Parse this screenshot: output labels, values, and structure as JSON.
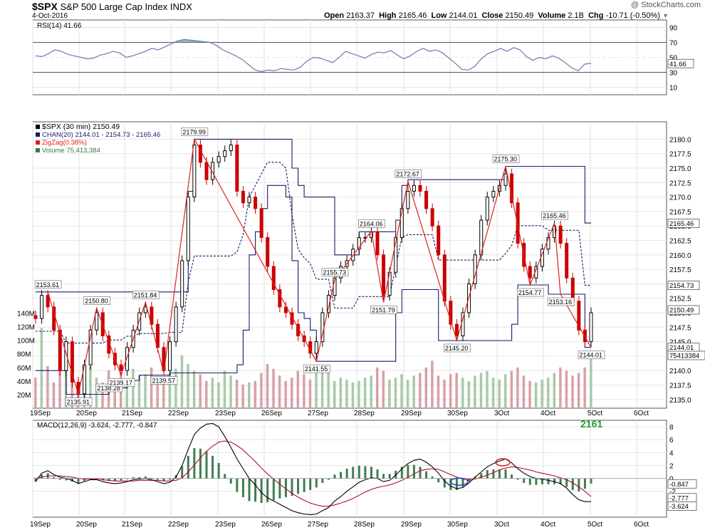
{
  "header": {
    "symbol": "$SPX",
    "name": "S&P 500 Large Cap Index",
    "exchange": "INDX",
    "date": "4-Oct-2016",
    "credit": "@ StockCharts.com",
    "open_label": "Open",
    "open": "2163.37",
    "high_label": "High",
    "high": "2165.46",
    "low_label": "Low",
    "low": "2144.01",
    "close_label": "Close",
    "close": "2150.49",
    "volume_label": "Volume",
    "volume": "2.1B",
    "chg_label": "Chg",
    "chg": "-10.71 (-0.50%)"
  },
  "colors": {
    "up": "#000000",
    "down": "#cc0000",
    "channel": "#1a1a6e",
    "zigzag": "#e02020",
    "rsi": "#6a7bb0",
    "macd": "#000000",
    "signal": "#b01030",
    "hist": "#3f7d52",
    "volume": "#9fbf9f"
  },
  "chart_data": [
    {
      "type": "line",
      "title": "RSI(14) 41.66",
      "y_ticks": [
        10,
        30,
        50,
        70,
        90
      ],
      "last_label": "41.66",
      "ylim": [
        0,
        100
      ],
      "x_labels": [
        "19Sep",
        "20Sep",
        "21Sep",
        "22Sep",
        "23Sep",
        "26Sep",
        "27Sep",
        "28Sep",
        "29Sep",
        "30Sep",
        "3Oct",
        "4Oct",
        "5Oct",
        "6Oct"
      ],
      "series": [
        {
          "values": [
            52,
            51,
            55,
            60,
            58,
            54,
            52,
            50,
            48,
            49,
            53,
            55,
            58,
            56,
            50,
            52,
            55,
            58,
            62,
            60,
            64,
            68,
            72,
            74,
            73,
            72,
            71,
            70,
            66,
            60,
            56,
            52,
            47,
            40,
            33,
            31,
            33,
            32,
            35,
            34,
            33,
            37,
            45,
            50,
            49,
            46,
            43,
            50,
            58,
            55,
            52,
            49,
            54,
            57,
            56,
            59,
            53,
            48,
            52,
            58,
            62,
            58,
            60,
            56,
            49,
            42,
            34,
            33,
            38,
            48,
            55,
            58,
            62,
            58,
            63,
            60,
            51,
            46,
            50,
            48,
            52,
            49,
            43,
            36,
            32,
            41,
            42
          ]
        }
      ]
    },
    {
      "type": "candlestick",
      "legend": [
        "$SPX (30 min) 2150.49",
        "CHAN(20) 2144.01 - 2154.73 - 2165.46",
        "ZigZag(0.38%)",
        "Volume 75,413,384"
      ],
      "ylim": [
        2133.5,
        2183
      ],
      "y_ticks": [
        "2135.0",
        "2137.5",
        "2140.0",
        "2142.5",
        "2145.0",
        "2147.5",
        "2150.0",
        "2152.5",
        "2155.0",
        "2157.5",
        "2160.0",
        "2162.5",
        "2165.0",
        "2167.5",
        "2170.0",
        "2172.5",
        "2175.0",
        "2177.5",
        "2180.0"
      ],
      "badges": [
        "2165.46",
        "2154.73",
        "2150.49",
        "2144.01",
        "75413384"
      ],
      "volume_ticks": [
        "20M",
        "40M",
        "60M",
        "80M",
        "100M",
        "120M",
        "140M"
      ],
      "zigzag_labels": [
        "2153.61",
        "2135.91",
        "2150.80",
        "2138.28",
        "2139.17",
        "2151.84",
        "2139.57",
        "2179.99",
        "2141.55",
        "2155.73",
        "2164.06",
        "2151.79",
        "2172.67",
        "2145.20",
        "2175.30",
        "2154.77",
        "2165.46",
        "2153.16",
        "2144.01"
      ],
      "zigzag_points": [
        [
          2,
          2153.6
        ],
        [
          7,
          2135.9
        ],
        [
          10,
          2150.8
        ],
        [
          14,
          2139.2
        ],
        [
          18,
          2151.8
        ],
        [
          21,
          2139.6
        ],
        [
          26,
          2180.0
        ],
        [
          46,
          2141.6
        ],
        [
          49,
          2155.7
        ],
        [
          55,
          2164.1
        ],
        [
          57,
          2151.8
        ],
        [
          61,
          2172.7
        ],
        [
          69,
          2145.2
        ],
        [
          77,
          2175.3
        ],
        [
          81,
          2154.8
        ],
        [
          85,
          2165.5
        ],
        [
          86,
          2153.2
        ],
        [
          91,
          2144.0
        ]
      ],
      "closes": [
        2149,
        2153,
        2151,
        2147,
        2140,
        2145,
        2138,
        2136,
        2141,
        2147,
        2150,
        2146,
        2143,
        2141,
        2140,
        2144,
        2147,
        2150,
        2151,
        2148,
        2144,
        2140,
        2145,
        2151,
        2159,
        2170,
        2179,
        2176,
        2173,
        2176,
        2177,
        2178,
        2179,
        2171,
        2169,
        2170,
        2168,
        2163,
        2158,
        2154,
        2151,
        2150,
        2148,
        2146,
        2145,
        2143,
        2145,
        2150,
        2153,
        2156,
        2158,
        2159,
        2161,
        2163,
        2163,
        2164,
        2160,
        2153,
        2157,
        2163,
        2168,
        2171,
        2172,
        2171,
        2168,
        2165,
        2160,
        2152,
        2148,
        2146,
        2150,
        2155,
        2160,
        2166,
        2170,
        2171,
        2172,
        2174,
        2169,
        2162,
        2158,
        2156,
        2158,
        2161,
        2163,
        2165,
        2162,
        2156,
        2152,
        2147,
        2145,
        2150
      ],
      "volumes": [
        45,
        118,
        62,
        38,
        55,
        70,
        40,
        35,
        50,
        62,
        45,
        38,
        56,
        44,
        52,
        40,
        58,
        48,
        50,
        60,
        42,
        38,
        52,
        58,
        78,
        65,
        55,
        50,
        40,
        45,
        38,
        55,
        48,
        42,
        35,
        38,
        40,
        52,
        65,
        58,
        48,
        40,
        45,
        55,
        50,
        42,
        62,
        58,
        52,
        40,
        45,
        42,
        38,
        40,
        45,
        48,
        60,
        55,
        42,
        45,
        50,
        42,
        48,
        52,
        60,
        70,
        48,
        42,
        50,
        52,
        45,
        40,
        48,
        52,
        55,
        45,
        42,
        50,
        55,
        60,
        48,
        40,
        38,
        42,
        45,
        52,
        60,
        55,
        48,
        52,
        60,
        82
      ],
      "channel_upper": [
        2153.6,
        2153.6,
        2153.6,
        2153.6,
        2153.6,
        2153.6,
        2153.6,
        2153.6,
        2153.6,
        2153.6,
        2153.6,
        2153.6,
        2153.6,
        2153.6,
        2153.6,
        2153.6,
        2153.6,
        2153.6,
        2153.6,
        2153.6,
        2153.6,
        2153.6,
        2153.6,
        2153.6,
        2153.6,
        2171,
        2180,
        2180,
        2180,
        2180,
        2180,
        2180,
        2180,
        2180,
        2180,
        2180,
        2180,
        2180,
        2180,
        2180,
        2180,
        2180,
        2175,
        2172,
        2170,
        2170,
        2170,
        2170,
        2170,
        2160,
        2160,
        2160,
        2160,
        2164,
        2164,
        2164,
        2164,
        2164,
        2164,
        2166,
        2172,
        2173,
        2173,
        2173,
        2173,
        2173,
        2173,
        2173,
        2173,
        2173,
        2173,
        2173,
        2173,
        2173,
        2173,
        2173,
        2173,
        2175.3,
        2175.3,
        2175.3,
        2175.3,
        2175.3,
        2175.3,
        2175.3,
        2175.3,
        2175.3,
        2175.3,
        2175.3,
        2175.3,
        2175.3,
        2165.5,
        2165.5
      ],
      "channel_lower": [
        2140,
        2140,
        2140,
        2140,
        2140,
        2135.9,
        2135.9,
        2135.9,
        2135.9,
        2135.9,
        2135.9,
        2135.9,
        2137,
        2137,
        2137,
        2138.3,
        2138.3,
        2139.2,
        2139.2,
        2139.2,
        2139.2,
        2139.2,
        2139.6,
        2139.6,
        2139.6,
        2139.6,
        2139.6,
        2139.6,
        2139.6,
        2139.6,
        2139.6,
        2139.6,
        2139.6,
        2141,
        2147,
        2160,
        2164,
        2168,
        2172,
        2172,
        2172,
        2170,
        2159,
        2150,
        2149,
        2147,
        2141.6,
        2141.6,
        2141.6,
        2141.6,
        2141.6,
        2141.6,
        2141.6,
        2141.6,
        2141.6,
        2141.6,
        2141.6,
        2141.6,
        2141.6,
        2150,
        2154,
        2154,
        2154,
        2154,
        2154,
        2154,
        2145.2,
        2145.2,
        2145.2,
        2145.2,
        2145.2,
        2145.2,
        2145.2,
        2145.2,
        2145.2,
        2145.2,
        2145.2,
        2145.2,
        2148,
        2154.8,
        2154.8,
        2154.8,
        2154.8,
        2154.8,
        2153.2,
        2153.2,
        2153.2,
        2153.2,
        2153.2,
        2153.2,
        2144,
        2144
      ]
    },
    {
      "type": "line",
      "title": "MACD(12,26,9) -3.624, -2.777, -0.847",
      "annotation": "2161",
      "y_ticks": [
        -2,
        0,
        2,
        4,
        6,
        8
      ],
      "badges": [
        "-0.847",
        "-2.777",
        "-3.624"
      ],
      "ylim": [
        -6,
        9
      ],
      "series": [
        {
          "name": "MACD",
          "values": [
            -0.5,
            0.8,
            1.2,
            0.6,
            0.2,
            0.0,
            -0.3,
            -0.8,
            -0.5,
            -0.2,
            -0.2,
            -0.5,
            -0.7,
            -0.8,
            -0.7,
            -0.5,
            -0.2,
            -0.1,
            0.0,
            -0.2,
            -0.5,
            -0.8,
            -0.6,
            0.2,
            2.0,
            4.5,
            6.8,
            7.8,
            8.4,
            8.5,
            8.0,
            6.5,
            4.8,
            3.0,
            1.5,
            0.0,
            -1.0,
            -2.2,
            -3.0,
            -3.5,
            -4.0,
            -4.5,
            -5.0,
            -5.3,
            -5.5,
            -5.6,
            -5.5,
            -5.0,
            -4.5,
            -3.5,
            -2.8,
            -2.0,
            -1.3,
            -0.6,
            -0.2,
            0.1,
            0.0,
            -0.5,
            -0.3,
            0.5,
            1.5,
            2.3,
            2.8,
            3.0,
            2.5,
            1.8,
            0.8,
            -0.4,
            -1.2,
            -1.6,
            -1.4,
            -0.7,
            0.2,
            1.0,
            1.8,
            2.3,
            2.7,
            3.0,
            2.4,
            1.5,
            0.8,
            0.3,
            0.0,
            -0.1,
            -0.3,
            -0.5,
            -0.8,
            -1.5,
            -2.5,
            -3.3,
            -3.6,
            -3.6
          ]
        },
        {
          "name": "Signal",
          "values": [
            0.0,
            0.2,
            0.4,
            0.4,
            0.4,
            0.3,
            0.2,
            0.0,
            -0.1,
            -0.1,
            -0.1,
            -0.2,
            -0.3,
            -0.4,
            -0.4,
            -0.4,
            -0.4,
            -0.3,
            -0.3,
            -0.3,
            -0.3,
            -0.4,
            -0.4,
            -0.3,
            0.1,
            1.0,
            2.1,
            3.2,
            4.2,
            5.0,
            5.6,
            5.8,
            5.6,
            5.1,
            4.4,
            3.5,
            2.6,
            1.6,
            0.7,
            -0.1,
            -0.9,
            -1.6,
            -2.3,
            -2.9,
            -3.4,
            -3.8,
            -4.1,
            -4.3,
            -4.3,
            -4.1,
            -3.8,
            -3.5,
            -3.1,
            -2.6,
            -2.1,
            -1.7,
            -1.4,
            -1.2,
            -1.0,
            -0.7,
            -0.3,
            0.2,
            0.7,
            1.2,
            1.4,
            1.5,
            1.4,
            1.0,
            0.6,
            0.2,
            -0.1,
            -0.2,
            -0.1,
            0.2,
            0.5,
            0.9,
            1.3,
            1.6,
            1.8,
            1.7,
            1.5,
            1.3,
            1.0,
            0.8,
            0.6,
            0.4,
            0.1,
            -0.2,
            -0.7,
            -1.3,
            -2.0,
            -2.8
          ]
        }
      ]
    }
  ]
}
